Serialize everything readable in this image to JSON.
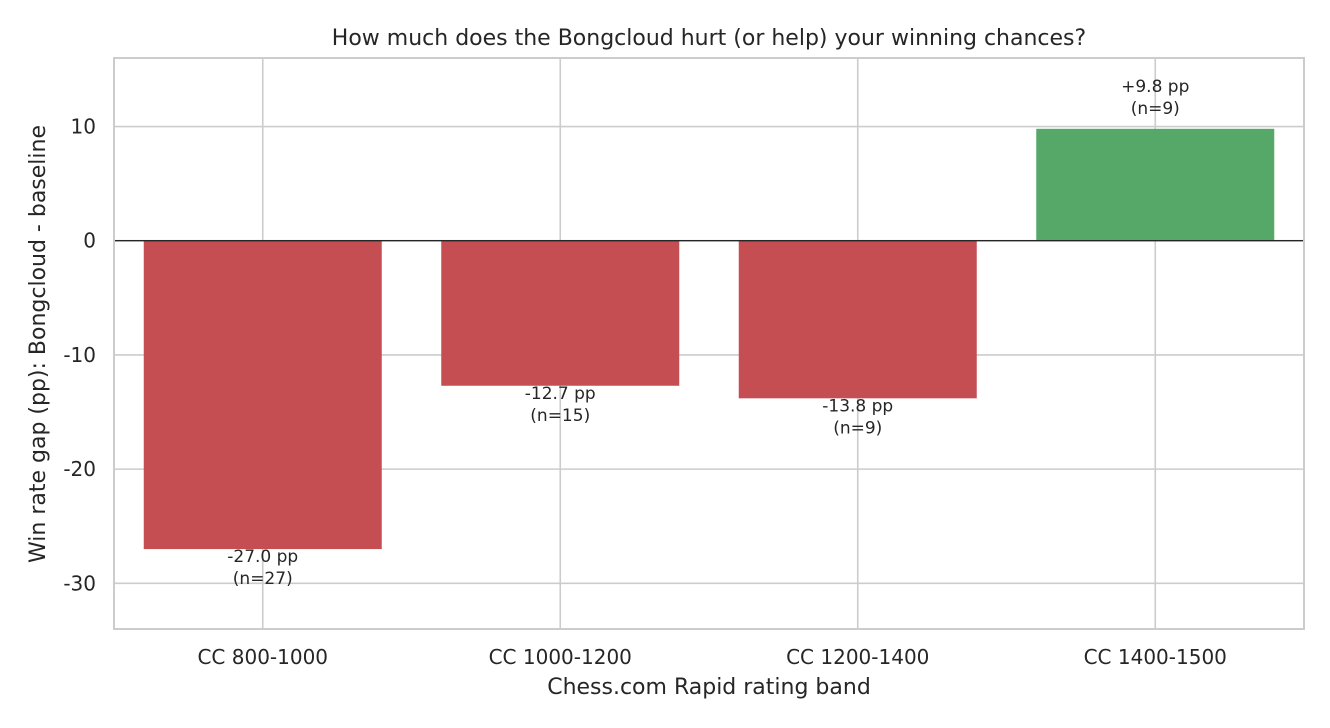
{
  "chart_data": {
    "type": "bar",
    "title": "How much does the Bongcloud hurt (or help) your winning chances?",
    "xlabel": "Chess.com Rapid rating band",
    "ylabel": "Win rate gap (pp): Bongcloud - baseline",
    "categories": [
      "CC 800-1000",
      "CC 1000-1200",
      "CC 1200-1400",
      "CC 1400-1500"
    ],
    "values": [
      -27.0,
      -12.7,
      -13.8,
      9.8
    ],
    "value_labels": [
      "-27.0 pp",
      "-12.7 pp",
      "-13.8 pp",
      "+9.8 pp"
    ],
    "n_labels": [
      "(n=27)",
      "(n=15)",
      "(n=9)",
      "(n=9)"
    ],
    "ylim": [
      -34,
      16
    ],
    "yticks": [
      -30,
      -20,
      -10,
      0,
      10
    ],
    "grid": true,
    "colors": {
      "negative": "#c44e52",
      "positive": "#55a868",
      "grid": "#cccccc",
      "zero_line": "#262626",
      "frame": "#cccccc"
    }
  }
}
